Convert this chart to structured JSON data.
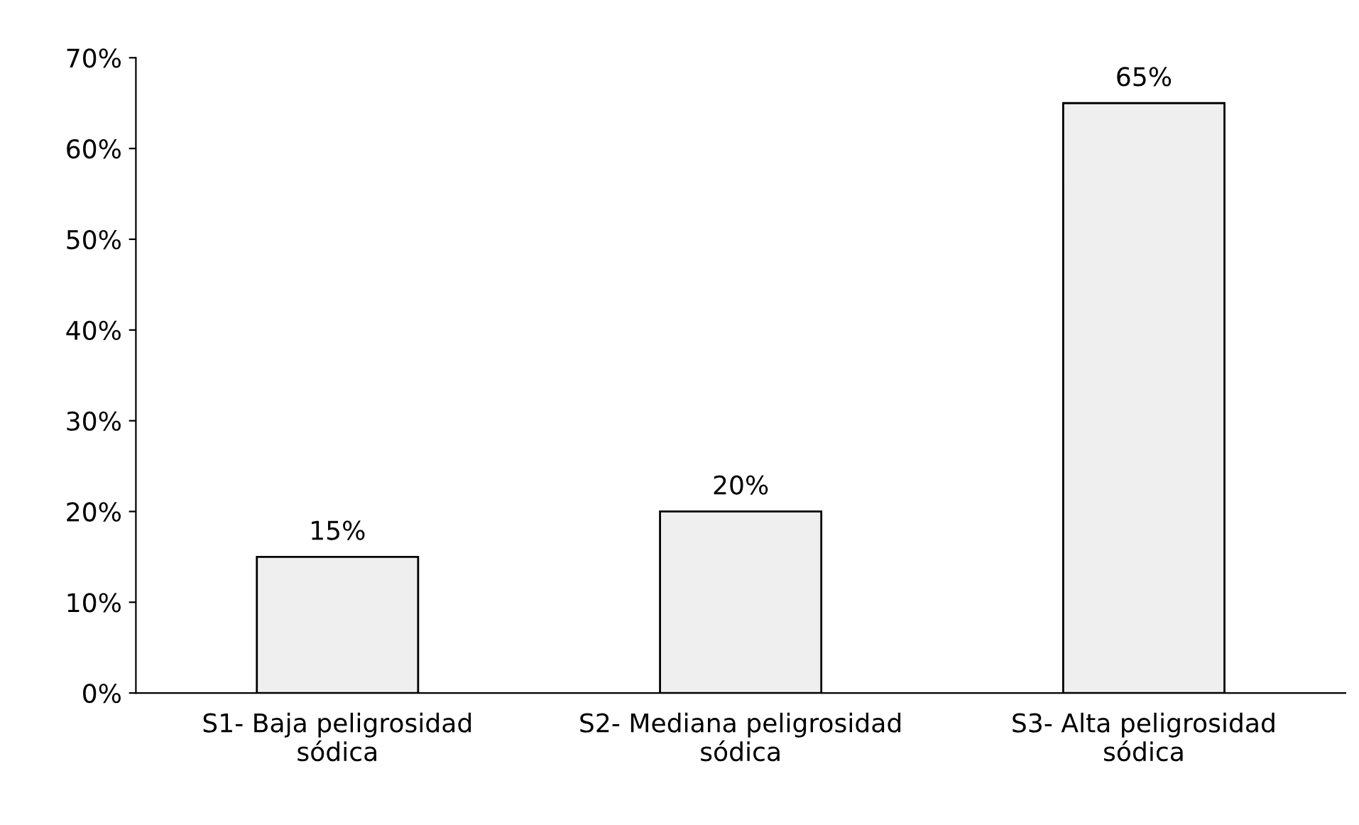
{
  "chart_data": {
    "type": "bar",
    "categories": [
      "S1- Baja peligrosidad sódica",
      "S2- Mediana peligrosidad sódica",
      "S3- Alta peligrosidad sódica"
    ],
    "values": [
      15,
      20,
      65
    ],
    "value_labels": [
      "15%",
      "20%",
      "65%"
    ],
    "color": "#efefef",
    "ylim": [
      0,
      70
    ],
    "yticks": [
      {
        "value": 0,
        "label": "0%"
      },
      {
        "value": 10,
        "label": "10%"
      },
      {
        "value": 20,
        "label": "20%"
      },
      {
        "value": 30,
        "label": "30%"
      },
      {
        "value": 40,
        "label": "40%"
      },
      {
        "value": 50,
        "label": "50%"
      },
      {
        "value": 60,
        "label": "60%"
      },
      {
        "value": 70,
        "label": "70%"
      }
    ],
    "grid": false,
    "legend": false
  }
}
